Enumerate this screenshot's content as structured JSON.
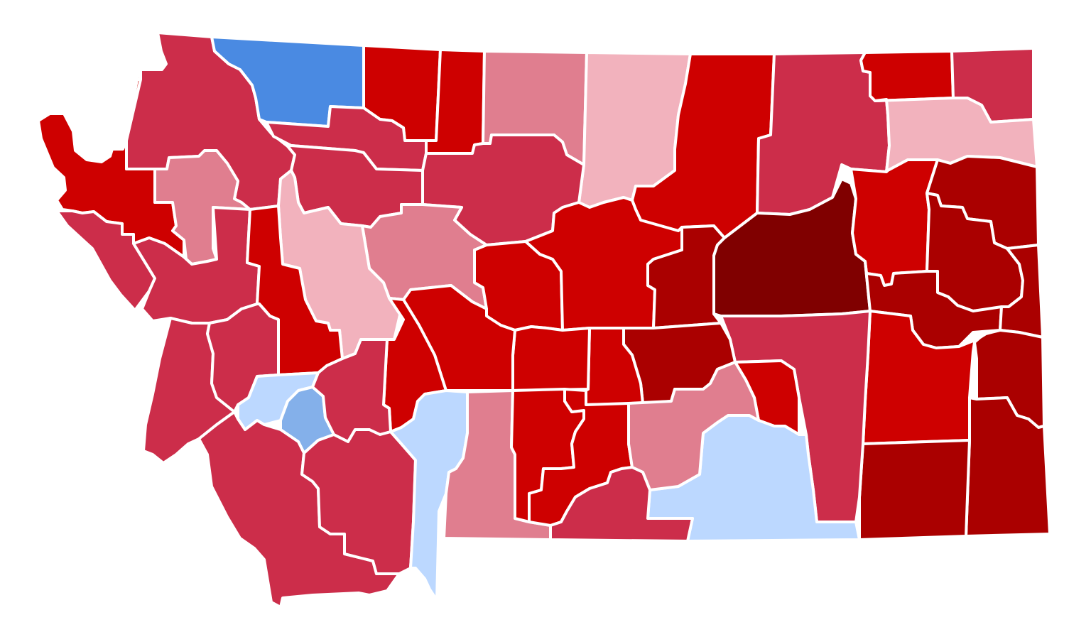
{
  "map": {
    "subject": "Montana",
    "unit": "county",
    "legend": {
      "r1": "#ce0000",
      "r2": "#cc2d4a",
      "r3": "#e07e8f",
      "r4": "#f2b2bd",
      "r5": "#aa0000",
      "r6": "#800000",
      "d1": "#4a8ae2",
      "d2": "#84b0ea",
      "d3": "#bcd8ff"
    },
    "counties": [
      {
        "id": "lincoln",
        "shade": "r1"
      },
      {
        "id": "flathead",
        "shade": "r2"
      },
      {
        "id": "glacier",
        "shade": "d1"
      },
      {
        "id": "toole",
        "shade": "r1"
      },
      {
        "id": "liberty",
        "shade": "r1"
      },
      {
        "id": "hill",
        "shade": "r3"
      },
      {
        "id": "blaine",
        "shade": "r4"
      },
      {
        "id": "phillips",
        "shade": "r1"
      },
      {
        "id": "valley",
        "shade": "r2"
      },
      {
        "id": "daniels",
        "shade": "r1"
      },
      {
        "id": "sheridan",
        "shade": "r2"
      },
      {
        "id": "roosevelt",
        "shade": "r4"
      },
      {
        "id": "pondera",
        "shade": "r2"
      },
      {
        "id": "teton",
        "shade": "r2"
      },
      {
        "id": "chouteau",
        "shade": "r2"
      },
      {
        "id": "sanders",
        "shade": "r2"
      },
      {
        "id": "lake",
        "shade": "r3"
      },
      {
        "id": "missoula",
        "shade": "d2"
      },
      {
        "id": "mineral",
        "shade": "r2"
      },
      {
        "id": "powell",
        "shade": "r1"
      },
      {
        "id": "lewis-and-clark",
        "shade": "r4"
      },
      {
        "id": "cascade",
        "shade": "r3"
      },
      {
        "id": "judith-basin",
        "shade": "r1"
      },
      {
        "id": "fergus",
        "shade": "r1"
      },
      {
        "id": "petroleum",
        "shade": "r5"
      },
      {
        "id": "garfield",
        "shade": "r6"
      },
      {
        "id": "mccone",
        "shade": "r1"
      },
      {
        "id": "richland",
        "shade": "r5"
      },
      {
        "id": "dawson",
        "shade": "r5"
      },
      {
        "id": "prairie",
        "shade": "r5"
      },
      {
        "id": "wibaux",
        "shade": "r5"
      },
      {
        "id": "ravalli",
        "shade": "r2"
      },
      {
        "id": "granite",
        "shade": "r2"
      },
      {
        "id": "deer-lodge",
        "shade": "d3"
      },
      {
        "id": "silver-bow",
        "shade": "d2"
      },
      {
        "id": "jefferson",
        "shade": "r2"
      },
      {
        "id": "broadwater",
        "shade": "r1"
      },
      {
        "id": "meagher",
        "shade": "r1"
      },
      {
        "id": "wheatland",
        "shade": "r1"
      },
      {
        "id": "golden-valley",
        "shade": "r1"
      },
      {
        "id": "musselshell",
        "shade": "r5"
      },
      {
        "id": "rosebud",
        "shade": "r2"
      },
      {
        "id": "custer",
        "shade": "r1"
      },
      {
        "id": "fallon",
        "shade": "r5"
      },
      {
        "id": "beaverhead",
        "shade": "r2"
      },
      {
        "id": "madison",
        "shade": "r2"
      },
      {
        "id": "gallatin",
        "shade": "d3"
      },
      {
        "id": "park",
        "shade": "r3"
      },
      {
        "id": "sweet-grass",
        "shade": "r1"
      },
      {
        "id": "stillwater",
        "shade": "r1"
      },
      {
        "id": "yellowstone",
        "shade": "r3"
      },
      {
        "id": "treasure",
        "shade": "r1"
      },
      {
        "id": "carbon",
        "shade": "r2"
      },
      {
        "id": "big-horn",
        "shade": "d3"
      },
      {
        "id": "powder-river",
        "shade": "r5"
      },
      {
        "id": "carter",
        "shade": "r5"
      }
    ]
  }
}
